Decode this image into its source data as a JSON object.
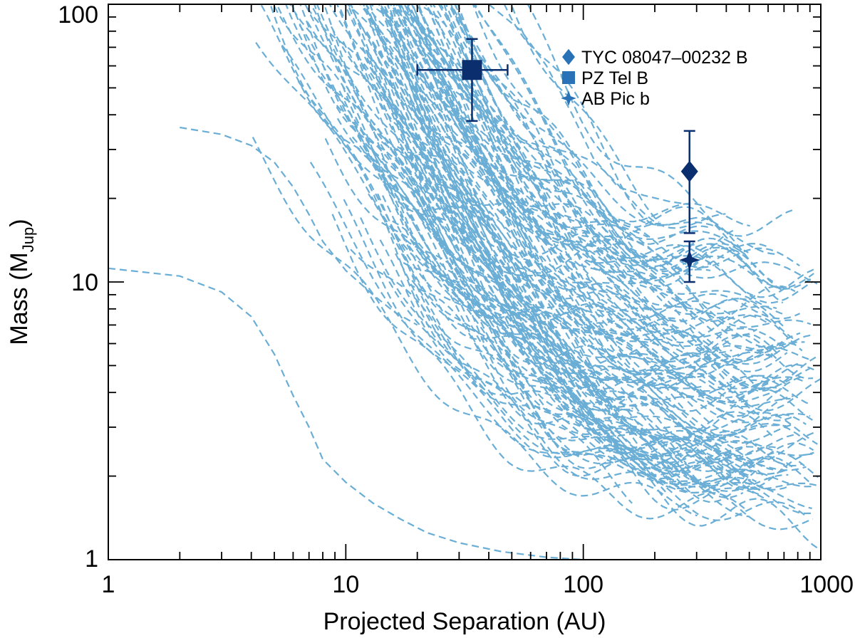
{
  "chart_data": {
    "type": "line",
    "xlabel": "Projected Separation (AU)",
    "ylabel_main": "Mass (M",
    "ylabel_sub": "Jup",
    "ylabel_close": ")",
    "xscale": "log",
    "yscale": "log",
    "xlim": [
      1,
      1000
    ],
    "ylim": [
      1,
      100
    ],
    "x_ticks": [
      {
        "value": 1,
        "label": "1"
      },
      {
        "value": 10,
        "label": "10"
      },
      {
        "value": 100,
        "label": "100"
      },
      {
        "value": 1000,
        "label": "1000"
      }
    ],
    "y_ticks": [
      {
        "value": 1,
        "label": "1"
      },
      {
        "value": 10,
        "label": "10"
      },
      {
        "value": 100,
        "label": "100"
      }
    ],
    "grid": false,
    "legend_position": "top-right",
    "curve_color": "#6aaed6",
    "marker_color": "#0b2f6e",
    "legend_marker_color": "#2a72b8",
    "detection_limit_curves": {
      "count": 150,
      "style": "dashed",
      "x_start_range": [
        2,
        20
      ],
      "x_end_range": [
        150,
        1000
      ],
      "floor_mass_range": [
        1.5,
        15
      ]
    },
    "highlight_curves": [
      {
        "x": [
          1,
          2,
          3,
          4,
          5,
          6,
          7,
          8,
          10,
          13,
          17,
          22,
          30,
          45,
          70,
          100
        ],
        "y": [
          11.2,
          10.5,
          9.2,
          7.5,
          5.5,
          3.9,
          3.0,
          2.3,
          1.9,
          1.6,
          1.4,
          1.25,
          1.15,
          1.07,
          1.02,
          1.0
        ]
      },
      {
        "x": [
          2,
          3,
          4,
          5,
          6,
          7,
          8,
          10,
          13,
          16,
          20
        ],
        "y": [
          36,
          34,
          31,
          27,
          22,
          17.5,
          14,
          11,
          9,
          7.8,
          7
        ]
      },
      {
        "x": [
          40,
          55,
          70,
          90,
          110,
          140,
          180,
          230,
          280
        ],
        "y": [
          100,
          80,
          60,
          40,
          28,
          22,
          20.5,
          19.5,
          19
        ]
      }
    ],
    "series": [
      {
        "name": "TYC 08047–00232 B",
        "marker": "diamond",
        "x": 280,
        "y": 25,
        "y_err_low": 15,
        "y_err_high": 35
      },
      {
        "name": "PZ Tel B",
        "marker": "square",
        "x": 34,
        "y": 58,
        "x_err_low": 20,
        "x_err_high": 48,
        "y_err_low": 38,
        "y_err_high": 75
      },
      {
        "name": "AB Pic b",
        "marker": "star4",
        "x": 280,
        "y": 12,
        "y_err_low": 10,
        "y_err_high": 14
      }
    ]
  }
}
